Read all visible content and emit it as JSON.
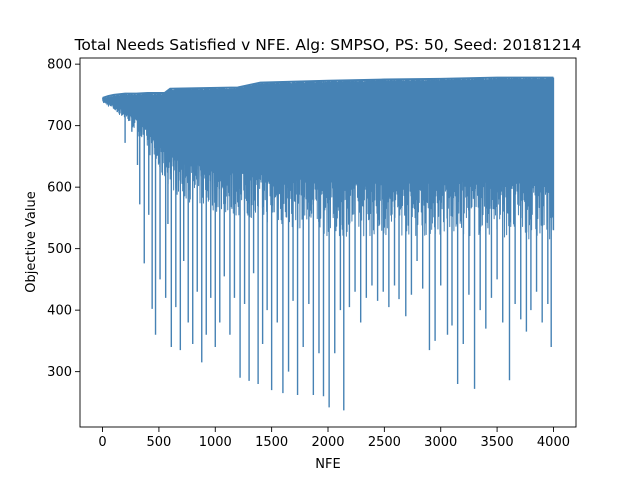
{
  "chart_data": {
    "type": "line",
    "title": "Total Needs Satisfied v NFE. Alg: SMPSO, PS: 50, Seed: 20181214",
    "xlabel": "NFE",
    "ylabel": "Objective Value",
    "xlim": [
      -200,
      4200
    ],
    "ylim": [
      210,
      810
    ],
    "xticks": [
      0,
      500,
      1000,
      1500,
      2000,
      2500,
      3000,
      3500,
      4000
    ],
    "yticks": [
      300,
      400,
      500,
      600,
      700,
      800
    ],
    "grid": false,
    "series": [
      {
        "color": "#4682b4",
        "upper_envelope": {
          "x": [
            0,
            50,
            100,
            200,
            300,
            400,
            550,
            600,
            1200,
            1400,
            2000,
            2500,
            3000,
            3500,
            4000
          ],
          "y": [
            745,
            748,
            750,
            752,
            752,
            753,
            753,
            760,
            762,
            770,
            773,
            775,
            776,
            778,
            778
          ]
        },
        "lower_envelope": {
          "x": [
            0,
            100,
            200,
            300,
            400,
            500,
            700,
            1000,
            1500,
            2000,
            2500,
            3000,
            3500,
            4000
          ],
          "y": [
            738,
            725,
            710,
            690,
            660,
            620,
            580,
            560,
            540,
            520,
            520,
            520,
            520,
            510
          ]
        },
        "dips": [
          {
            "x": 130,
            "y": 722
          },
          {
            "x": 200,
            "y": 672
          },
          {
            "x": 260,
            "y": 690
          },
          {
            "x": 310,
            "y": 636
          },
          {
            "x": 330,
            "y": 572
          },
          {
            "x": 370,
            "y": 476
          },
          {
            "x": 410,
            "y": 555
          },
          {
            "x": 440,
            "y": 402
          },
          {
            "x": 470,
            "y": 360
          },
          {
            "x": 510,
            "y": 450
          },
          {
            "x": 560,
            "y": 420
          },
          {
            "x": 580,
            "y": 540
          },
          {
            "x": 610,
            "y": 340
          },
          {
            "x": 650,
            "y": 405
          },
          {
            "x": 690,
            "y": 335
          },
          {
            "x": 720,
            "y": 480
          },
          {
            "x": 760,
            "y": 380
          },
          {
            "x": 800,
            "y": 345
          },
          {
            "x": 840,
            "y": 430
          },
          {
            "x": 880,
            "y": 315
          },
          {
            "x": 920,
            "y": 360
          },
          {
            "x": 960,
            "y": 420
          },
          {
            "x": 1000,
            "y": 340
          },
          {
            "x": 1040,
            "y": 380
          },
          {
            "x": 1080,
            "y": 455
          },
          {
            "x": 1130,
            "y": 360
          },
          {
            "x": 1170,
            "y": 420
          },
          {
            "x": 1220,
            "y": 290
          },
          {
            "x": 1260,
            "y": 410
          },
          {
            "x": 1300,
            "y": 285
          },
          {
            "x": 1340,
            "y": 460
          },
          {
            "x": 1380,
            "y": 280
          },
          {
            "x": 1420,
            "y": 345
          },
          {
            "x": 1460,
            "y": 400
          },
          {
            "x": 1500,
            "y": 270
          },
          {
            "x": 1550,
            "y": 380
          },
          {
            "x": 1600,
            "y": 265
          },
          {
            "x": 1650,
            "y": 300
          },
          {
            "x": 1690,
            "y": 415
          },
          {
            "x": 1730,
            "y": 262
          },
          {
            "x": 1780,
            "y": 340
          },
          {
            "x": 1830,
            "y": 410
          },
          {
            "x": 1870,
            "y": 262
          },
          {
            "x": 1920,
            "y": 330
          },
          {
            "x": 1960,
            "y": 260
          },
          {
            "x": 2010,
            "y": 242
          },
          {
            "x": 2060,
            "y": 330
          },
          {
            "x": 2110,
            "y": 400
          },
          {
            "x": 2140,
            "y": 237
          },
          {
            "x": 2190,
            "y": 405
          },
          {
            "x": 2240,
            "y": 430
          },
          {
            "x": 2290,
            "y": 380
          },
          {
            "x": 2340,
            "y": 420
          },
          {
            "x": 2390,
            "y": 440
          },
          {
            "x": 2440,
            "y": 415
          },
          {
            "x": 2490,
            "y": 430
          },
          {
            "x": 2540,
            "y": 405
          },
          {
            "x": 2590,
            "y": 440
          },
          {
            "x": 2630,
            "y": 418
          },
          {
            "x": 2690,
            "y": 390
          },
          {
            "x": 2740,
            "y": 425
          },
          {
            "x": 2790,
            "y": 480
          },
          {
            "x": 2840,
            "y": 435
          },
          {
            "x": 2900,
            "y": 335
          },
          {
            "x": 2950,
            "y": 350
          },
          {
            "x": 3000,
            "y": 440
          },
          {
            "x": 3060,
            "y": 360
          },
          {
            "x": 3100,
            "y": 375
          },
          {
            "x": 3150,
            "y": 280
          },
          {
            "x": 3200,
            "y": 345
          },
          {
            "x": 3250,
            "y": 425
          },
          {
            "x": 3300,
            "y": 272
          },
          {
            "x": 3350,
            "y": 400
          },
          {
            "x": 3400,
            "y": 370
          },
          {
            "x": 3450,
            "y": 420
          },
          {
            "x": 3500,
            "y": 450
          },
          {
            "x": 3550,
            "y": 380
          },
          {
            "x": 3610,
            "y": 286
          },
          {
            "x": 3660,
            "y": 410
          },
          {
            "x": 3710,
            "y": 385
          },
          {
            "x": 3760,
            "y": 365
          },
          {
            "x": 3800,
            "y": 400
          },
          {
            "x": 3850,
            "y": 430
          },
          {
            "x": 3900,
            "y": 380
          },
          {
            "x": 3950,
            "y": 410
          },
          {
            "x": 3980,
            "y": 340
          },
          {
            "x": 4000,
            "y": 530
          }
        ]
      }
    ]
  }
}
